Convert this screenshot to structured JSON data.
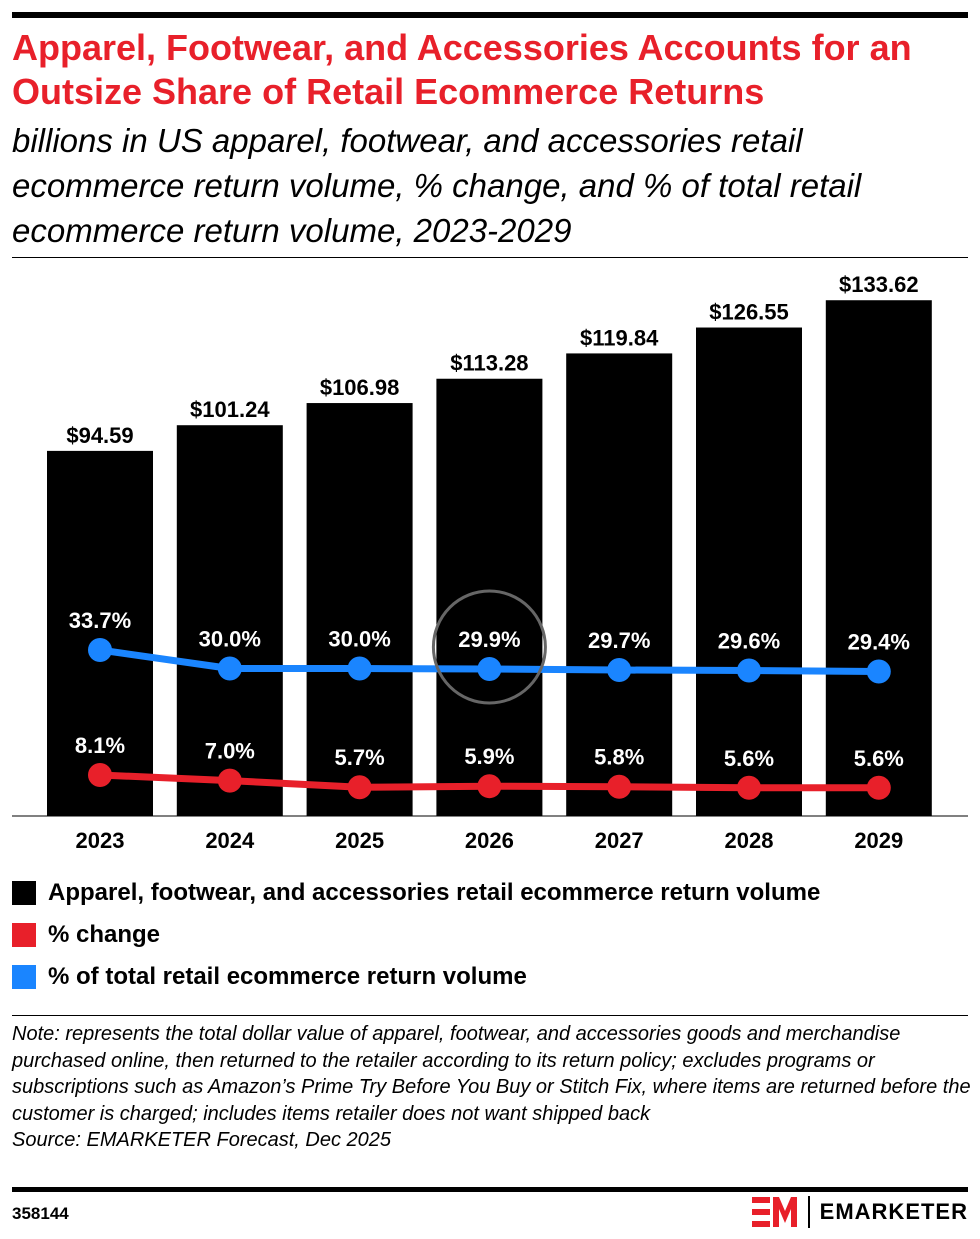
{
  "header": {
    "title": "Apparel, Footwear, and Accessories Accounts for an Outsize Share of Retail Ecommerce Returns",
    "subtitle": "billions in US apparel, footwear, and accessories retail ecommerce return volume, % change, and % of total retail ecommerce return volume, 2023-2029"
  },
  "chart_data": {
    "type": "bar",
    "categories": [
      "2023",
      "2024",
      "2025",
      "2026",
      "2027",
      "2028",
      "2029"
    ],
    "series": [
      {
        "name": "Apparel, footwear, and accessories retail ecommerce return volume",
        "type": "bar",
        "values": [
          94.59,
          101.24,
          106.98,
          113.28,
          119.84,
          126.55,
          133.62
        ],
        "labels": [
          "$94.59",
          "$101.24",
          "$106.98",
          "$113.28",
          "$119.84",
          "$126.55",
          "$133.62"
        ],
        "color": "#000000"
      },
      {
        "name": "% change",
        "type": "line",
        "values": [
          8.1,
          7.0,
          5.7,
          5.9,
          5.8,
          5.6,
          5.6
        ],
        "labels": [
          "8.1%",
          "7.0%",
          "5.7%",
          "5.9%",
          "5.8%",
          "5.6%",
          "5.6%"
        ],
        "color": "#e8202a"
      },
      {
        "name": "% of total retail ecommerce return volume",
        "type": "line",
        "values": [
          33.7,
          30.0,
          30.0,
          29.9,
          29.7,
          29.6,
          29.4
        ],
        "labels": [
          "33.7%",
          "30.0%",
          "30.0%",
          "29.9%",
          "29.7%",
          "29.6%",
          "29.4%"
        ],
        "color": "#1a85ff"
      }
    ],
    "highlight": {
      "category": "2026",
      "series": "% of total retail ecommerce return volume"
    },
    "grid": false,
    "legend_placement": "bottom"
  },
  "legend": [
    {
      "label": "Apparel, footwear, and accessories retail ecommerce return volume",
      "color": "#000000"
    },
    {
      "label": "% change",
      "color": "#e8202a"
    },
    {
      "label": "% of total retail ecommerce return volume",
      "color": "#1a85ff"
    }
  ],
  "footer": {
    "note": "Note: represents the total dollar value of apparel, footwear, and accessories goods and merchandise purchased online, then returned to the retailer according to its return policy; excludes programs or subscriptions such as Amazon’s Prime Try Before You Buy or Stitch Fix, where items are returned before the customer is charged; includes items retailer does not want shipped back",
    "source": "Source: EMARKETER Forecast, Dec 2025",
    "chart_id": "358144",
    "brand": "EMARKETER"
  },
  "colors": {
    "accent": "#e8202a",
    "blue": "#1a85ff",
    "bar": "#000000",
    "highlight_ring": "#666666"
  }
}
